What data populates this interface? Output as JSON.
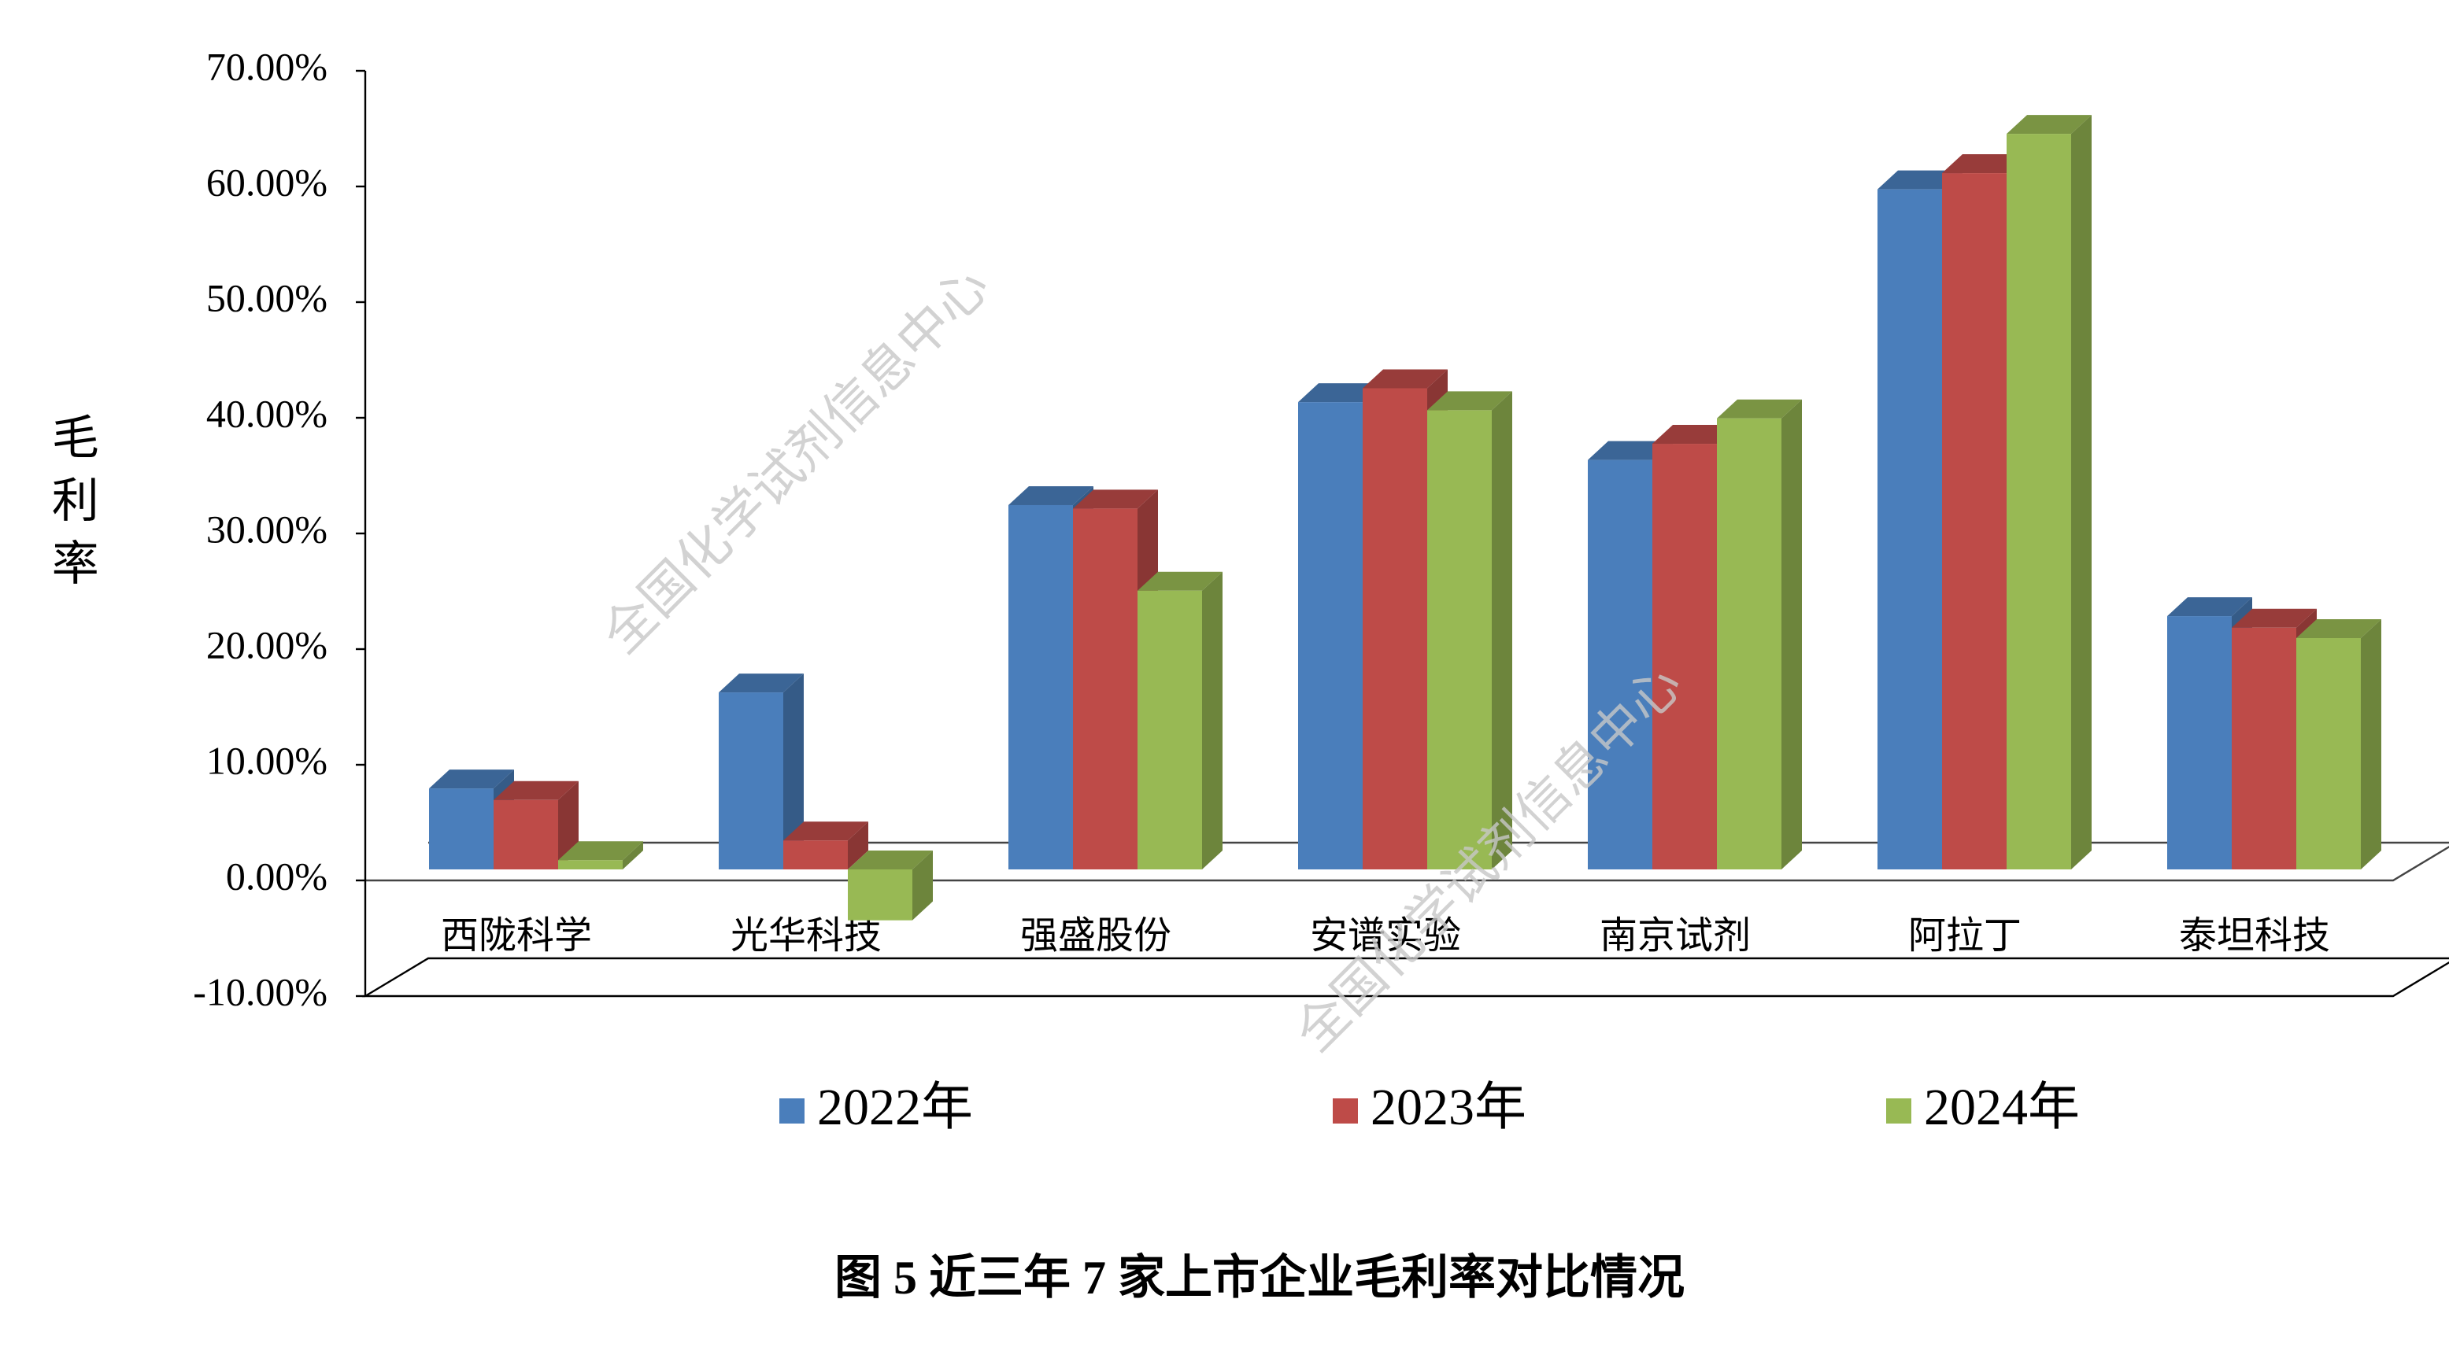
{
  "chart_data": {
    "type": "bar3d",
    "caption": "图 5  近三年 7 家上市企业毛利率对比情况",
    "y_label": "毛利率",
    "watermarks": [
      "全国化学试剂信息中心",
      "全国化学试剂信息中心"
    ],
    "categories": [
      "西陇科学",
      "光华科技",
      "强盛股份",
      "安谱实验",
      "南京试剂",
      "阿拉丁",
      "泰坦科技"
    ],
    "series": [
      {
        "name": "2022年",
        "color": "#4a7ebb",
        "values": [
          7.0,
          15.3,
          31.5,
          40.4,
          35.4,
          58.8,
          21.9
        ]
      },
      {
        "name": "2023年",
        "color": "#be4b48",
        "values": [
          6.0,
          2.5,
          31.2,
          41.6,
          36.8,
          60.2,
          20.9
        ]
      },
      {
        "name": "2024年",
        "color": "#98b954",
        "values": [
          0.8,
          -4.4,
          24.1,
          39.7,
          39.0,
          63.6,
          20.0
        ]
      }
    ],
    "ylim": [
      -10,
      70
    ],
    "yticks": [
      {
        "value": -10,
        "label": "-10.00%"
      },
      {
        "value": 0,
        "label": "0.00%"
      },
      {
        "value": 10,
        "label": "10.00%"
      },
      {
        "value": 20,
        "label": "20.00%"
      },
      {
        "value": 30,
        "label": "30.00%"
      },
      {
        "value": 40,
        "label": "40.00%"
      },
      {
        "value": 50,
        "label": "50.00%"
      },
      {
        "value": 60,
        "label": "60.00%"
      },
      {
        "value": 70,
        "label": "70.00%"
      }
    ],
    "grid": false
  }
}
